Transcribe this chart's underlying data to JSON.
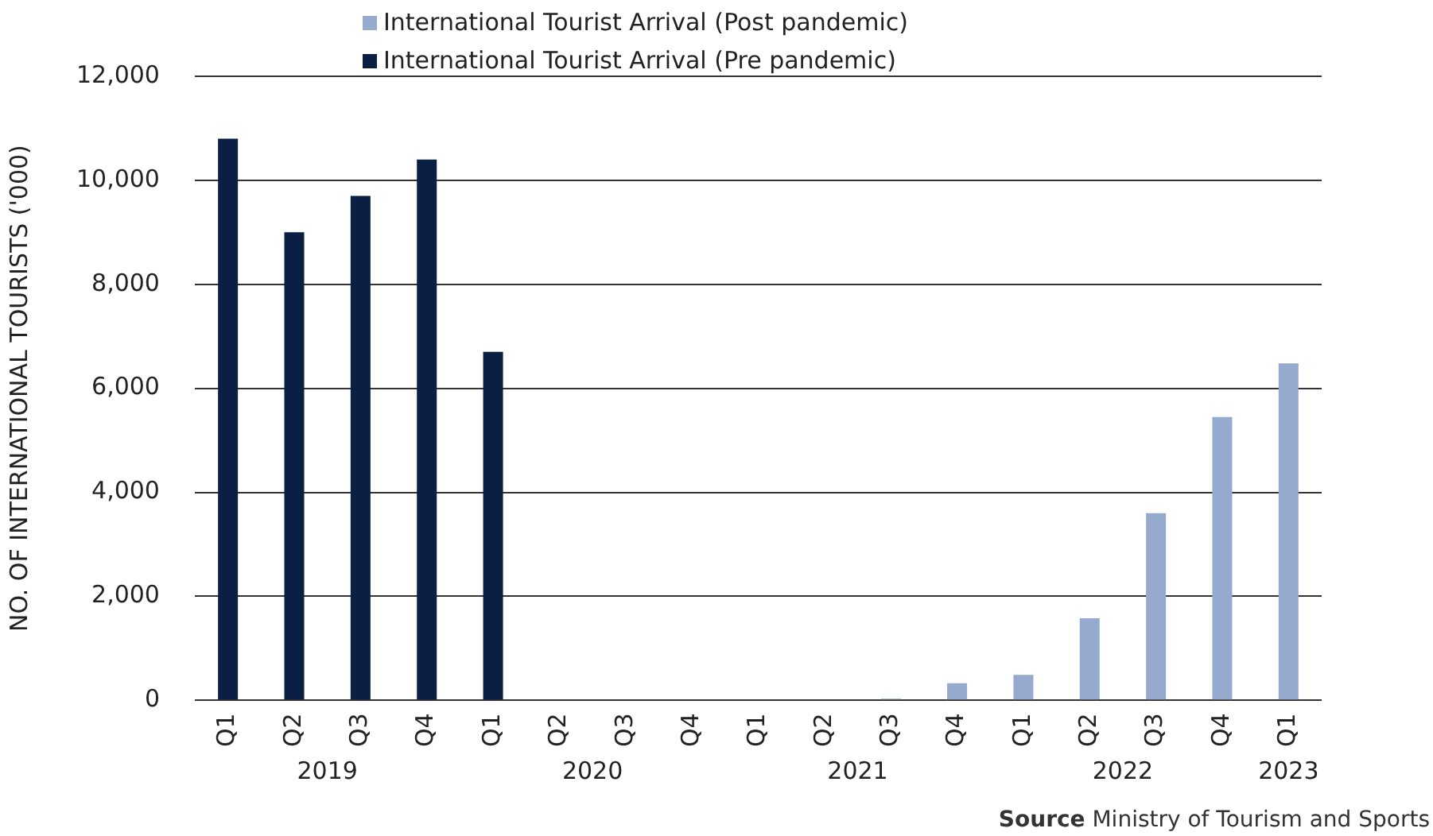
{
  "chart_data": {
    "type": "bar",
    "ylabel": "NO. OF INTERNATIONAL TOURISTS ('000)",
    "categories": [
      "Q1",
      "Q2",
      "Q3",
      "Q4",
      "Q1",
      "Q2",
      "Q3",
      "Q4",
      "Q1",
      "Q2",
      "Q3",
      "Q4",
      "Q1",
      "Q2",
      "Q3",
      "Q4",
      "Q1"
    ],
    "series": [
      {
        "name": "International Tourist Arrival (Post pandemic)",
        "color": "#96aacf",
        "values": [
          null,
          null,
          null,
          null,
          null,
          0,
          0,
          null,
          null,
          null,
          30,
          330,
          490,
          1580,
          3600,
          5450,
          6480
        ]
      },
      {
        "name": "International Tourist Arrival (Pre pandemic)",
        "color": "#0b1f45",
        "values": [
          10800,
          9000,
          9700,
          10400,
          6700,
          null,
          null,
          null,
          null,
          null,
          null,
          null,
          null,
          null,
          null,
          null,
          null
        ]
      }
    ],
    "ylim": [
      0,
      12000
    ],
    "yticks": [
      {
        "value": 0,
        "label": "0"
      },
      {
        "value": 2000,
        "label": "2,000"
      },
      {
        "value": 4000,
        "label": "4,000"
      },
      {
        "value": 6000,
        "label": "6,000"
      },
      {
        "value": 8000,
        "label": "8,000"
      },
      {
        "value": 10000,
        "label": "10,000"
      },
      {
        "value": 12000,
        "label": "12,000"
      }
    ],
    "grid": "y",
    "legend": "top",
    "annotations": [
      "2019",
      "2020",
      "2021",
      "2022",
      "2023",
      "Source Ministry of Tourism and Sports"
    ]
  }
}
